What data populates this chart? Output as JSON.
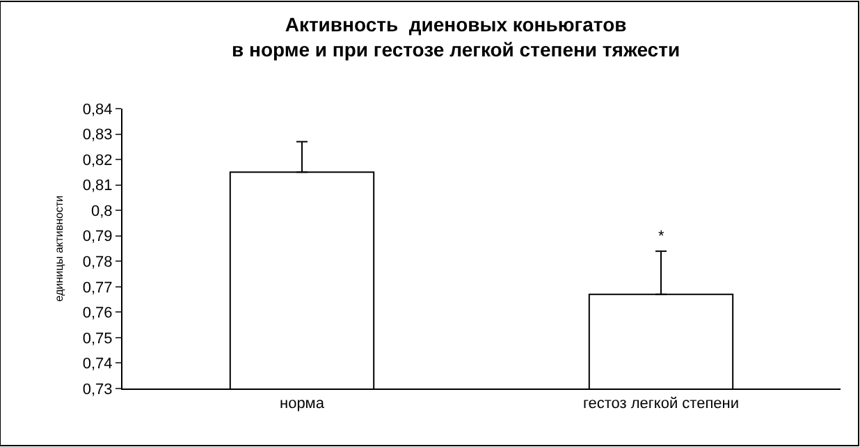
{
  "chart_data": {
    "type": "bar",
    "title": "Активность  диеновых коньюгатов\nв норме и при гестозе легкой степени тяжести",
    "ylabel": "единицы активности",
    "categories": [
      "норма",
      "гестоз легкой степени"
    ],
    "values": [
      0.815,
      0.767
    ],
    "errors": [
      [
        0.815,
        0.827
      ],
      [
        0.767,
        0.784
      ]
    ],
    "color": "#ffffff",
    "ylim": [
      0.73,
      0.84
    ],
    "yticks": [
      {
        "value": 0.73,
        "label": "0,73"
      },
      {
        "value": 0.74,
        "label": "0,74"
      },
      {
        "value": 0.75,
        "label": "0,75"
      },
      {
        "value": 0.76,
        "label": "0,76"
      },
      {
        "value": 0.77,
        "label": "0,77"
      },
      {
        "value": 0.78,
        "label": "0,78"
      },
      {
        "value": 0.79,
        "label": "0,79"
      },
      {
        "value": 0.8,
        "label": "0,8"
      },
      {
        "value": 0.81,
        "label": "0,81"
      },
      {
        "value": 0.82,
        "label": "0,82"
      },
      {
        "value": 0.83,
        "label": "0,83"
      },
      {
        "value": 0.84,
        "label": "0,84"
      }
    ],
    "annotations": [
      "*"
    ]
  }
}
